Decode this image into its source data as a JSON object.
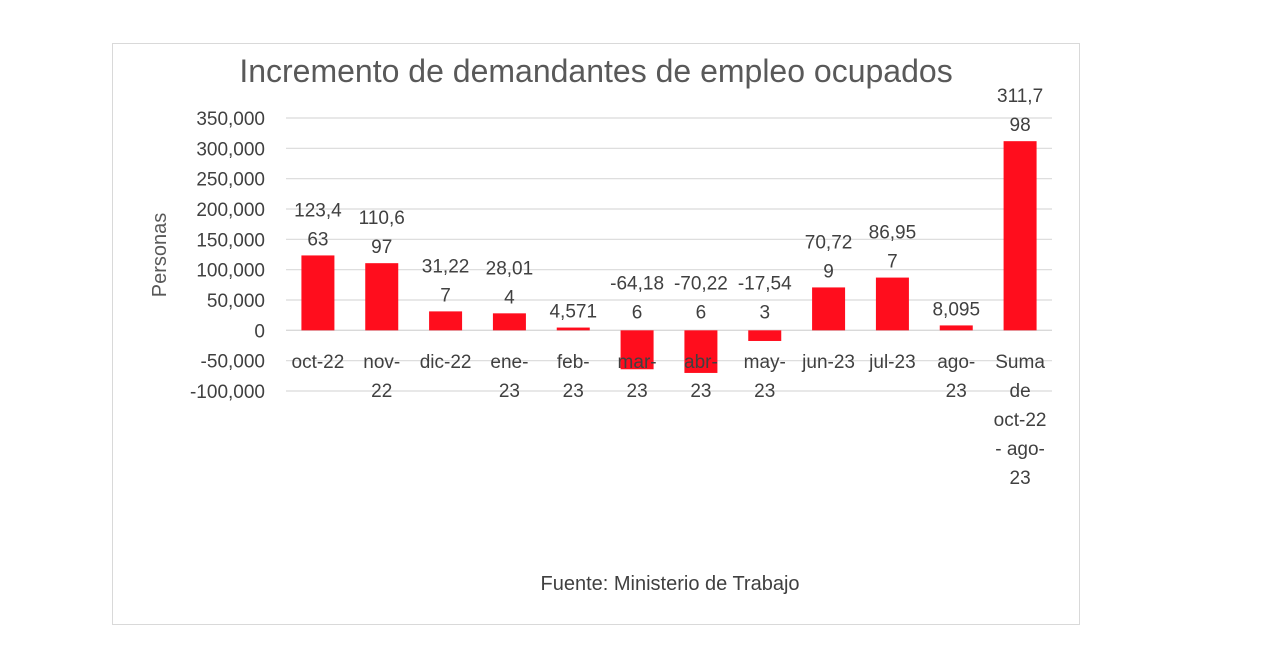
{
  "chart_data": {
    "type": "bar",
    "title": "Incremento de demandantes de empleo ocupados",
    "ylabel": "Personas",
    "xlabel": "",
    "source": "Fuente: Ministerio de Trabajo",
    "ylim": [
      -100000,
      350000
    ],
    "yticks": [
      -100000,
      -50000,
      0,
      50000,
      100000,
      150000,
      200000,
      250000,
      300000,
      350000
    ],
    "ytick_labels": [
      "-100,000",
      "-50,000",
      "0",
      "50,000",
      "100,000",
      "150,000",
      "200,000",
      "250,000",
      "300,000",
      "350,000"
    ],
    "grid": true,
    "bar_color": "#ff0d1d",
    "categories": [
      [
        "oct-22"
      ],
      [
        "nov-",
        "22"
      ],
      [
        "dic-22"
      ],
      [
        "ene-",
        "23"
      ],
      [
        "feb-",
        "23"
      ],
      [
        "mar-",
        "23"
      ],
      [
        "abr-",
        "23"
      ],
      [
        "may-",
        "23"
      ],
      [
        "jun-23"
      ],
      [
        "jul-23"
      ],
      [
        "ago-",
        "23"
      ],
      [
        "Suma",
        "de",
        "oct-22",
        "- ago-",
        "23"
      ]
    ],
    "values": [
      123463,
      110697,
      31227,
      28014,
      4571,
      -64186,
      -70226,
      -17543,
      70729,
      86957,
      8095,
      311798
    ],
    "data_labels": [
      [
        "123,4",
        "63"
      ],
      [
        "110,6",
        "97"
      ],
      [
        "31,22",
        "7"
      ],
      [
        "28,01",
        "4"
      ],
      [
        "4,571"
      ],
      [
        "-64,18",
        "6"
      ],
      [
        "-70,22",
        "6"
      ],
      [
        "-17,54",
        "3"
      ],
      [
        "70,72",
        "9"
      ],
      [
        "86,95",
        "7"
      ],
      [
        "8,095"
      ],
      [
        "311,7",
        "98"
      ]
    ]
  }
}
